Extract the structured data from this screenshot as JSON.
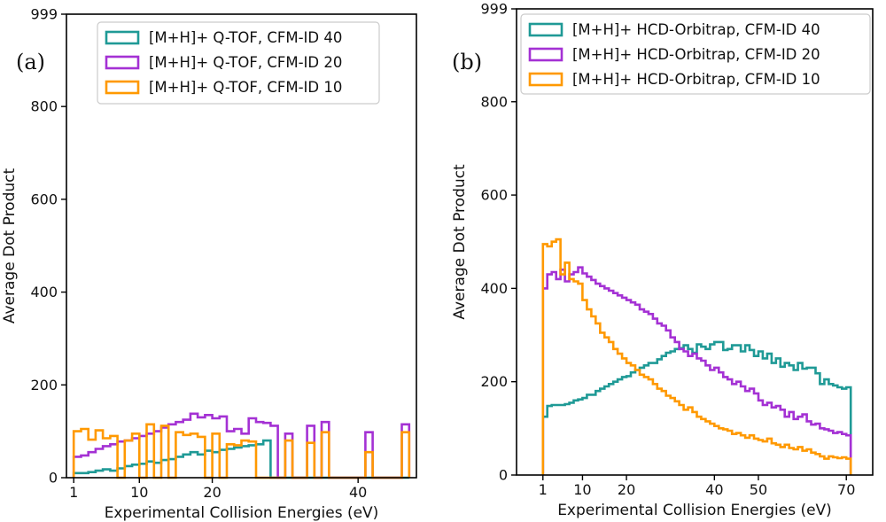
{
  "chart_data": [
    {
      "type": "histogram-step",
      "panel_label": "(a)",
      "xlabel": "Experimental Collision Energies (eV)",
      "ylabel": "Average Dot Product",
      "ylim": [
        0,
        999
      ],
      "yticks": [
        0,
        200,
        400,
        600,
        800,
        999
      ],
      "xlim": [
        0,
        48
      ],
      "xticks": [
        {
          "value": 1,
          "label": "1"
        },
        {
          "value": 10,
          "label": "10"
        },
        {
          "value": 20,
          "label": "20"
        },
        {
          "value": 40,
          "label": "40"
        }
      ],
      "bin_edges": [
        1,
        2,
        3,
        4,
        5,
        6,
        7,
        8,
        9,
        10,
        11,
        12,
        13,
        14,
        15,
        16,
        17,
        18,
        19,
        20,
        21,
        22,
        23,
        24,
        25,
        26,
        27,
        28,
        29,
        30,
        31,
        32,
        33,
        34,
        35,
        36,
        37,
        38,
        39,
        40,
        41,
        42,
        43,
        44,
        45,
        46,
        47
      ],
      "legend": {
        "placement": "top-right"
      },
      "series": [
        {
          "name": "[M+H]+ Q-TOF, CFM-ID 40",
          "color": "#1f9a96",
          "values": [
            10,
            10,
            12,
            15,
            18,
            15,
            20,
            25,
            28,
            30,
            35,
            32,
            38,
            40,
            45,
            50,
            55,
            50,
            58,
            55,
            60,
            62,
            65,
            68,
            70,
            72,
            80,
            0,
            0,
            0,
            0,
            0,
            0,
            0,
            0,
            0,
            0,
            0,
            0,
            0,
            0,
            0,
            0,
            0,
            0,
            0
          ]
        },
        {
          "name": "[M+H]+ Q-TOF, CFM-ID 20",
          "color": "#a431d4",
          "values": [
            45,
            48,
            55,
            62,
            68,
            72,
            78,
            80,
            85,
            90,
            95,
            100,
            108,
            115,
            120,
            125,
            138,
            130,
            135,
            128,
            132,
            100,
            105,
            95,
            128,
            120,
            118,
            112,
            0,
            95,
            0,
            0,
            112,
            0,
            120,
            0,
            0,
            0,
            0,
            0,
            98,
            0,
            0,
            0,
            0,
            115
          ]
        },
        {
          "name": "[M+H]+ Q-TOF, CFM-ID 10",
          "color": "#ff9900",
          "values": [
            100,
            105,
            82,
            102,
            85,
            90,
            0,
            80,
            95,
            0,
            115,
            0,
            112,
            0,
            98,
            92,
            95,
            88,
            0,
            95,
            0,
            72,
            70,
            80,
            78,
            0,
            0,
            0,
            0,
            80,
            0,
            0,
            75,
            0,
            98,
            0,
            0,
            0,
            0,
            0,
            55,
            0,
            0,
            0,
            0,
            98
          ]
        }
      ]
    },
    {
      "type": "histogram-step",
      "panel_label": "(b)",
      "xlabel": "Experimental Collision Energies (eV)",
      "ylabel": "Average Dot Product",
      "ylim": [
        0,
        999
      ],
      "yticks": [
        0,
        200,
        400,
        600,
        800,
        999
      ],
      "xlim": [
        -5,
        76
      ],
      "xticks": [
        {
          "value": 1,
          "label": "1"
        },
        {
          "value": 10,
          "label": "10"
        },
        {
          "value": 20,
          "label": "20"
        },
        {
          "value": 40,
          "label": "40"
        },
        {
          "value": 50,
          "label": "50"
        },
        {
          "value": 70,
          "label": "70"
        }
      ],
      "bin_edges": [
        1,
        2,
        3,
        4,
        5,
        6,
        7,
        8,
        9,
        10,
        11,
        12,
        13,
        14,
        15,
        16,
        17,
        18,
        19,
        20,
        21,
        22,
        23,
        24,
        25,
        26,
        27,
        28,
        29,
        30,
        31,
        32,
        33,
        34,
        35,
        36,
        37,
        38,
        39,
        40,
        41,
        42,
        43,
        44,
        45,
        46,
        47,
        48,
        49,
        50,
        51,
        52,
        53,
        54,
        55,
        56,
        57,
        58,
        59,
        60,
        61,
        62,
        63,
        64,
        65,
        66,
        67,
        68,
        69,
        70,
        71
      ],
      "legend": {
        "placement": "top-right"
      },
      "series": [
        {
          "name": "[M+H]+ HCD-Orbitrap, CFM-ID 40",
          "color": "#1f9a96",
          "values": [
            125,
            148,
            150,
            150,
            150,
            152,
            155,
            160,
            162,
            165,
            172,
            172,
            180,
            185,
            190,
            195,
            200,
            205,
            210,
            212,
            220,
            225,
            230,
            235,
            240,
            240,
            248,
            255,
            262,
            265,
            270,
            272,
            278,
            270,
            262,
            280,
            275,
            270,
            280,
            285,
            285,
            268,
            270,
            278,
            278,
            265,
            278,
            268,
            255,
            265,
            250,
            260,
            240,
            250,
            232,
            240,
            235,
            225,
            240,
            228,
            230,
            230,
            218,
            195,
            205,
            195,
            192,
            188,
            185,
            188
          ]
        },
        {
          "name": "[M+H]+ HCD-Orbitrap, CFM-ID 20",
          "color": "#a431d4",
          "values": [
            400,
            430,
            435,
            420,
            440,
            415,
            430,
            435,
            445,
            432,
            425,
            418,
            410,
            405,
            400,
            395,
            390,
            385,
            380,
            375,
            370,
            365,
            355,
            350,
            345,
            335,
            325,
            320,
            310,
            295,
            285,
            270,
            265,
            255,
            260,
            250,
            245,
            235,
            225,
            230,
            220,
            210,
            205,
            195,
            200,
            190,
            180,
            185,
            175,
            160,
            150,
            155,
            145,
            148,
            140,
            125,
            135,
            120,
            125,
            130,
            115,
            108,
            110,
            100,
            98,
            95,
            90,
            92,
            88,
            85
          ]
        },
        {
          "name": "[M+H]+ HCD-Orbitrap, CFM-ID 10",
          "color": "#ff9900",
          "values": [
            495,
            490,
            500,
            505,
            430,
            455,
            420,
            415,
            410,
            375,
            355,
            340,
            325,
            305,
            295,
            285,
            270,
            260,
            250,
            240,
            235,
            225,
            215,
            210,
            205,
            195,
            185,
            180,
            170,
            165,
            158,
            150,
            140,
            145,
            135,
            125,
            120,
            115,
            110,
            105,
            100,
            98,
            95,
            88,
            90,
            85,
            80,
            85,
            78,
            75,
            72,
            78,
            68,
            65,
            60,
            65,
            58,
            55,
            60,
            52,
            55,
            48,
            45,
            40,
            35,
            40,
            38,
            36,
            38,
            35
          ]
        }
      ]
    }
  ]
}
